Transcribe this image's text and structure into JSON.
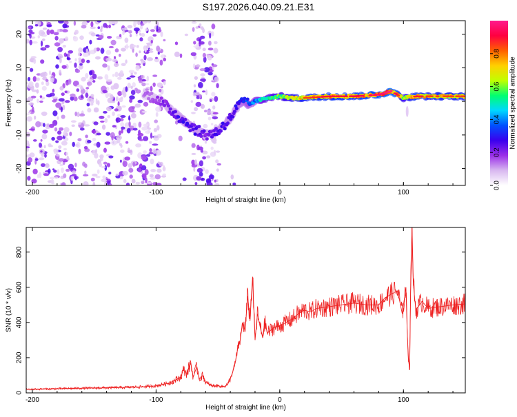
{
  "title": "S197.2026.040.09.21.E31",
  "colors": {
    "snr_line": "#ee2222",
    "background": "#ffffff",
    "axis": "#000000"
  },
  "chart_data": [
    {
      "type": "heatmap",
      "name": "spectrogram",
      "xlabel": "Height of straight line (km)",
      "ylabel": "Frequency (Hz)",
      "xlim": [
        -205,
        150
      ],
      "ylim": [
        -25,
        24
      ],
      "xticks": [
        -200,
        -100,
        0,
        100
      ],
      "yticks": [
        -20,
        -10,
        0,
        10,
        20
      ],
      "colorbar": {
        "label": "Normalized spectral amplitude",
        "range": [
          0,
          1
        ],
        "ticks": [
          0.0,
          0.2,
          0.4,
          0.6,
          0.8
        ],
        "colormap": [
          "#ffffff",
          "#d8b8f0",
          "#9b30e8",
          "#3a00ee",
          "#0050ff",
          "#00d8ff",
          "#00ff70",
          "#c0ff00",
          "#ffd000",
          "#ff6000",
          "#ff0040",
          "#ff1a8c"
        ]
      },
      "ridge_track": {
        "x": [
          -110,
          -100,
          -90,
          -80,
          -70,
          -60,
          -50,
          -40,
          -35,
          -30,
          -25,
          -20,
          -10,
          0,
          10,
          20,
          40,
          60,
          80,
          90,
          95,
          100,
          110,
          120,
          130,
          150
        ],
        "freq": [
          2,
          1,
          -2,
          -5,
          -8,
          -10,
          -9,
          -5,
          -2,
          0,
          -1,
          0,
          1,
          1.5,
          1,
          1,
          1.5,
          1.5,
          2,
          3,
          2,
          1,
          1.5,
          1.5,
          1.5,
          1.5
        ],
        "amplitude": [
          0.15,
          0.2,
          0.25,
          0.3,
          0.3,
          0.25,
          0.3,
          0.3,
          0.3,
          0.35,
          0.4,
          0.45,
          0.6,
          0.65,
          0.75,
          0.8,
          0.85,
          0.85,
          0.9,
          0.95,
          0.85,
          0.7,
          0.85,
          0.8,
          0.8,
          0.8
        ]
      }
    },
    {
      "type": "line",
      "name": "snr",
      "xlabel": "Height of straight line (km)",
      "ylabel": "SNR (10 * v/v)",
      "xlim": [
        -205,
        150
      ],
      "ylim": [
        0,
        940
      ],
      "xticks": [
        -200,
        -100,
        0,
        100
      ],
      "yticks": [
        0,
        200,
        400,
        600,
        800
      ],
      "series": [
        {
          "name": "SNR",
          "x": [
            -205,
            -190,
            -170,
            -150,
            -130,
            -110,
            -100,
            -90,
            -85,
            -80,
            -78,
            -75,
            -72,
            -70,
            -67,
            -65,
            -62,
            -60,
            -55,
            -50,
            -45,
            -42,
            -40,
            -38,
            -36,
            -34,
            -32,
            -30,
            -28,
            -26,
            -24,
            -22,
            -20,
            -18,
            -16,
            -14,
            -12,
            -10,
            -5,
            0,
            5,
            10,
            15,
            20,
            25,
            30,
            40,
            50,
            60,
            70,
            80,
            85,
            90,
            95,
            97,
            99,
            100,
            102,
            103,
            104,
            105,
            106,
            107,
            108,
            110,
            115,
            120,
            130,
            140,
            150
          ],
          "values": [
            20,
            22,
            25,
            28,
            30,
            35,
            40,
            55,
            70,
            90,
            130,
            110,
            170,
            90,
            150,
            80,
            100,
            60,
            40,
            40,
            35,
            50,
            80,
            120,
            170,
            250,
            300,
            400,
            350,
            550,
            420,
            660,
            300,
            450,
            380,
            320,
            400,
            340,
            370,
            380,
            400,
            420,
            450,
            470,
            460,
            480,
            490,
            500,
            510,
            500,
            500,
            540,
            560,
            580,
            520,
            450,
            500,
            600,
            350,
            200,
            130,
            700,
            940,
            620,
            470,
            520,
            480,
            490,
            500,
            505
          ]
        }
      ]
    }
  ]
}
